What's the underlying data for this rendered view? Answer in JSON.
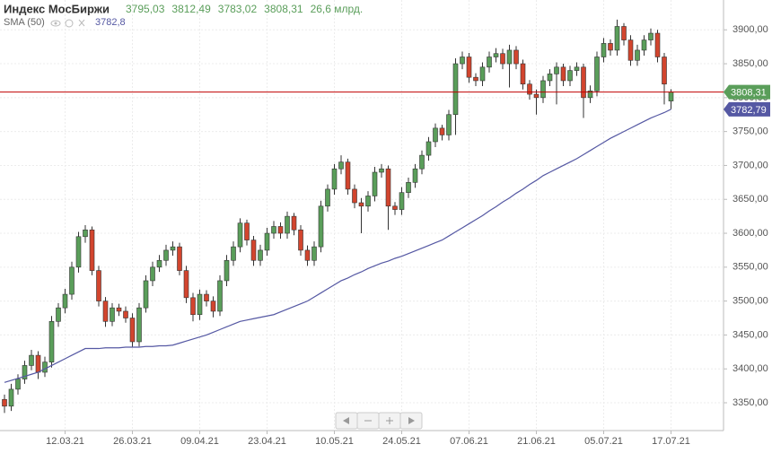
{
  "chart_data": {
    "type": "candlestick",
    "title": "Индекс МосБиржи",
    "volume_label": "26,6 млрд.",
    "categories": [
      null,
      null,
      null,
      null,
      null,
      null,
      null,
      null,
      null,
      "12.03.21",
      null,
      null,
      null,
      null,
      null,
      null,
      null,
      null,
      null,
      "26.03.21",
      null,
      null,
      null,
      null,
      null,
      null,
      null,
      null,
      null,
      "09.04.21",
      null,
      null,
      null,
      null,
      null,
      null,
      null,
      null,
      null,
      "23.04.21",
      null,
      null,
      null,
      null,
      null,
      null,
      null,
      null,
      null,
      "10.05.21",
      null,
      null,
      null,
      null,
      null,
      null,
      null,
      null,
      null,
      "24.05.21",
      null,
      null,
      null,
      null,
      null,
      null,
      null,
      null,
      null,
      "07.06.21",
      null,
      null,
      null,
      null,
      null,
      null,
      null,
      null,
      null,
      "21.06.21",
      null,
      null,
      null,
      null,
      null,
      null,
      null,
      null,
      null,
      "05.07.21",
      null,
      null,
      null,
      null,
      null,
      null,
      null,
      null,
      null,
      "17.07.21"
    ],
    "series": [
      {
        "name": "Индекс МосБиржи",
        "up_color": "#5a9e5a",
        "down_color": "#d2452e",
        "header_labels": [
          "3795,03",
          "3812,49",
          "3783,02",
          "3808,31"
        ],
        "open": [
          3355,
          3345,
          3370,
          3385,
          3405,
          3420,
          3395,
          3410,
          3470,
          3490,
          3510,
          3550,
          3595,
          3605,
          3545,
          3500,
          3470,
          3490,
          3485,
          3475,
          3440,
          3490,
          3530,
          3550,
          3560,
          3575,
          3580,
          3545,
          3505,
          3480,
          3510,
          3500,
          3485,
          3530,
          3560,
          3580,
          3615,
          3590,
          3560,
          3575,
          3600,
          3610,
          3600,
          3625,
          3605,
          3575,
          3560,
          3580,
          3640,
          3665,
          3695,
          3705,
          3665,
          3645,
          3640,
          3655,
          3690,
          3695,
          3640,
          3635,
          3660,
          3675,
          3695,
          3715,
          3735,
          3755,
          3745,
          3775,
          3850,
          3860,
          3830,
          3825,
          3845,
          3860,
          3865,
          3850,
          3870,
          3850,
          3820,
          3805,
          3800,
          3825,
          3835,
          3845,
          3825,
          3840,
          3845,
          3800,
          3810,
          3860,
          3880,
          3870,
          3905,
          3885,
          3855,
          3870,
          3885,
          3895,
          3860,
          3795.03
        ],
        "high": [
          3362,
          3378,
          3392,
          3412,
          3428,
          3426,
          3418,
          3478,
          3497,
          3518,
          3558,
          3602,
          3612,
          3610,
          3552,
          3506,
          3497,
          3496,
          3492,
          3482,
          3497,
          3538,
          3558,
          3568,
          3583,
          3588,
          3586,
          3552,
          3512,
          3517,
          3516,
          3507,
          3538,
          3568,
          3588,
          3622,
          3620,
          3596,
          3583,
          3608,
          3618,
          3616,
          3632,
          3630,
          3612,
          3582,
          3588,
          3648,
          3672,
          3702,
          3715,
          3710,
          3672,
          3652,
          3662,
          3698,
          3702,
          3700,
          3646,
          3668,
          3682,
          3702,
          3722,
          3742,
          3762,
          3760,
          3782,
          3858,
          3868,
          3866,
          3836,
          3852,
          3868,
          3873,
          3872,
          3878,
          3876,
          3856,
          3826,
          3812,
          3832,
          3842,
          3852,
          3850,
          3847,
          3852,
          3850,
          3818,
          3868,
          3888,
          3886,
          3915,
          3910,
          3892,
          3878,
          3892,
          3902,
          3900,
          3866,
          3812.49
        ],
        "low": [
          3335,
          3338,
          3362,
          3378,
          3398,
          3385,
          3388,
          3402,
          3462,
          3482,
          3502,
          3542,
          3586,
          3538,
          3492,
          3462,
          3463,
          3478,
          3468,
          3432,
          3433,
          3483,
          3522,
          3543,
          3552,
          3567,
          3538,
          3497,
          3470,
          3472,
          3492,
          3476,
          3478,
          3522,
          3552,
          3572,
          3582,
          3552,
          3552,
          3567,
          3592,
          3592,
          3592,
          3597,
          3567,
          3552,
          3552,
          3572,
          3632,
          3657,
          3687,
          3657,
          3637,
          3600,
          3632,
          3647,
          3682,
          3605,
          3627,
          3627,
          3652,
          3667,
          3687,
          3707,
          3727,
          3737,
          3737,
          3745,
          3842,
          3822,
          3817,
          3817,
          3837,
          3852,
          3842,
          3815,
          3842,
          3812,
          3797,
          3775,
          3792,
          3817,
          3790,
          3817,
          3817,
          3832,
          3770,
          3792,
          3802,
          3852,
          3862,
          3862,
          3877,
          3847,
          3847,
          3862,
          3877,
          3852,
          3790,
          3783.02
        ],
        "close": [
          3345,
          3370,
          3385,
          3405,
          3420,
          3395,
          3410,
          3470,
          3490,
          3510,
          3550,
          3595,
          3605,
          3545,
          3500,
          3470,
          3490,
          3485,
          3475,
          3440,
          3490,
          3530,
          3550,
          3560,
          3575,
          3580,
          3545,
          3505,
          3480,
          3510,
          3500,
          3485,
          3530,
          3560,
          3580,
          3615,
          3590,
          3560,
          3575,
          3600,
          3610,
          3600,
          3625,
          3605,
          3575,
          3560,
          3580,
          3640,
          3665,
          3695,
          3705,
          3665,
          3645,
          3640,
          3655,
          3690,
          3695,
          3640,
          3635,
          3660,
          3675,
          3695,
          3715,
          3735,
          3755,
          3745,
          3775,
          3850,
          3860,
          3830,
          3825,
          3845,
          3860,
          3865,
          3850,
          3870,
          3850,
          3820,
          3805,
          3800,
          3825,
          3835,
          3845,
          3825,
          3840,
          3845,
          3800,
          3810,
          3860,
          3880,
          3870,
          3905,
          3885,
          3855,
          3870,
          3885,
          3895,
          3860,
          3820,
          3808.31
        ]
      },
      {
        "name": "SMA (50)",
        "type": "line",
        "color": "#5558a3",
        "value_label": "3782,8",
        "values": [
          3380,
          3383,
          3386,
          3389,
          3392,
          3395,
          3400,
          3405,
          3410,
          3415,
          3420,
          3425,
          3430,
          3430,
          3430,
          3431,
          3431,
          3431,
          3432,
          3432,
          3432,
          3433,
          3433,
          3434,
          3434,
          3435,
          3438,
          3441,
          3444,
          3447,
          3450,
          3454,
          3458,
          3462,
          3466,
          3470,
          3472,
          3474,
          3476,
          3478,
          3480,
          3484,
          3488,
          3492,
          3496,
          3500,
          3506,
          3512,
          3518,
          3524,
          3530,
          3534,
          3539,
          3543,
          3548,
          3552,
          3556,
          3559,
          3563,
          3566,
          3570,
          3574,
          3578,
          3582,
          3586,
          3590,
          3596,
          3602,
          3608,
          3614,
          3620,
          3626,
          3633,
          3639,
          3646,
          3652,
          3659,
          3665,
          3672,
          3678,
          3685,
          3690,
          3695,
          3700,
          3705,
          3710,
          3716,
          3722,
          3728,
          3734,
          3740,
          3745,
          3750,
          3755,
          3760,
          3765,
          3770,
          3774,
          3778,
          3782.8
        ]
      }
    ],
    "price_line_color": "#c00000",
    "price_tags": [
      {
        "value": 3808.31,
        "label": "3808,31",
        "color": "#5a9e5a"
      },
      {
        "value": 3782.79,
        "label": "3782,79",
        "color": "#5558a3"
      }
    ],
    "ylim": [
      3309,
      3944
    ],
    "yticks": [
      {
        "value": 3350,
        "label": "3350,00"
      },
      {
        "value": 3400,
        "label": "3400,00"
      },
      {
        "value": 3450,
        "label": "3450,00"
      },
      {
        "value": 3500,
        "label": "3500,00"
      },
      {
        "value": 3550,
        "label": "3550,00"
      },
      {
        "value": 3600,
        "label": "3600,00"
      },
      {
        "value": 3650,
        "label": "3650,00"
      },
      {
        "value": 3700,
        "label": "3700,00"
      },
      {
        "value": 3750,
        "label": "3750,00"
      },
      {
        "value": 3800,
        "label": "3800,00"
      },
      {
        "value": 3850,
        "label": "3850,00"
      },
      {
        "value": 3900,
        "label": "3900,00"
      }
    ],
    "grid": true
  }
}
